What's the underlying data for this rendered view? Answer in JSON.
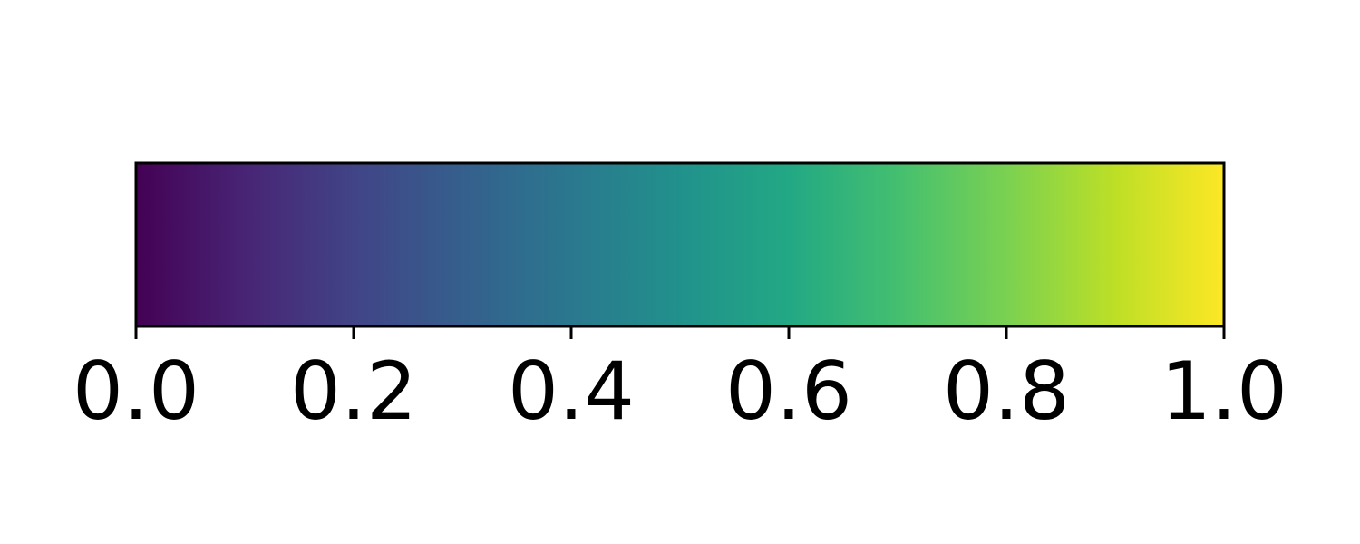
{
  "chart_data": {
    "type": "colorbar",
    "colormap": "viridis",
    "orientation": "horizontal",
    "range": [
      0.0,
      1.0
    ],
    "ticks": [
      0.0,
      0.2,
      0.4,
      0.6,
      0.8,
      1.0
    ],
    "tick_labels": [
      "0.0",
      "0.2",
      "0.4",
      "0.6",
      "0.8",
      "1.0"
    ],
    "color_stops": [
      {
        "value": 0.0,
        "color": "#440154"
      },
      {
        "value": 0.1,
        "color": "#482475"
      },
      {
        "value": 0.2,
        "color": "#414487"
      },
      {
        "value": 0.3,
        "color": "#355F8D"
      },
      {
        "value": 0.4,
        "color": "#2A788E"
      },
      {
        "value": 0.5,
        "color": "#21918C"
      },
      {
        "value": 0.6,
        "color": "#22A884"
      },
      {
        "value": 0.7,
        "color": "#44BF70"
      },
      {
        "value": 0.8,
        "color": "#7AD151"
      },
      {
        "value": 0.9,
        "color": "#BDDF26"
      },
      {
        "value": 1.0,
        "color": "#FDE725"
      }
    ],
    "title": "",
    "xlabel": "",
    "ylabel": ""
  }
}
